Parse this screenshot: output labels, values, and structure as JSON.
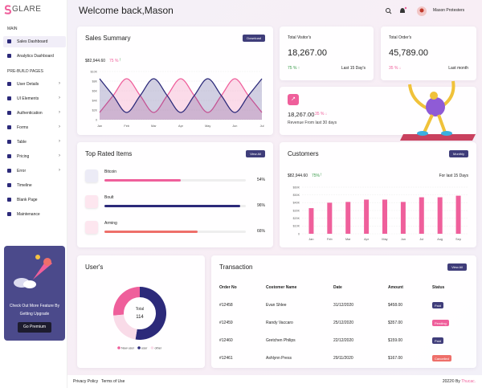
{
  "brand": "GLARE",
  "header": {
    "greeting": "Welcome back,Mason",
    "user": "Mason Protesters"
  },
  "sidebar": {
    "sections": [
      {
        "title": "MAIN",
        "items": [
          "Sales Dashboard",
          "Analytics Dashboard"
        ]
      },
      {
        "title": "PRE-BUILD PAGES",
        "items": [
          "User Details",
          "UI Elements",
          "Authentication",
          "Forms",
          "Table",
          "Pricing",
          "Error",
          "Timeline",
          "Blank Page",
          "Maintenance"
        ]
      }
    ],
    "promo": {
      "text": "Check Out More Feature By Getting Upgrade",
      "button": "Go Premium"
    }
  },
  "sales_summary": {
    "title": "Sales Summary",
    "button": "Download",
    "amount": "$82,944.60",
    "change": "75 %",
    "chart": {
      "type": "line",
      "categories": [
        "Jan",
        null,
        "Feb",
        null,
        "Mar",
        null,
        "Apr",
        null,
        "May",
        null,
        "Jun",
        null,
        "Jul"
      ],
      "series": [
        {
          "color": "#ef5f9b",
          "values": [
            1.5,
            5,
            8.5,
            5,
            1.5,
            5,
            8.5,
            5,
            1.5,
            5,
            8.5,
            5,
            1.5
          ]
        },
        {
          "color": "#2c2a7a",
          "values": [
            8.5,
            5,
            1.5,
            5,
            8.5,
            5,
            1.5,
            5,
            8.5,
            5,
            1.5,
            5,
            8.5
          ]
        }
      ],
      "ylim": [
        0,
        10
      ],
      "yticks": [
        0,
        {
          "value": 2,
          "label": "$2K"
        },
        {
          "value": 4,
          "label": "$4K"
        },
        {
          "value": 6,
          "label": "$6K"
        },
        {
          "value": 8,
          "label": "$8K"
        },
        {
          "value": 10,
          "label": "$10K"
        }
      ]
    }
  },
  "visitors": {
    "title": "Total Visitor's",
    "value": "18,267.00",
    "change": "75 %",
    "period": "Last 15 Day's"
  },
  "orders": {
    "title": "Total Order's",
    "value": "45,789.00",
    "change": "35 %",
    "period": "Last month"
  },
  "revenue": {
    "value": "18,267.00",
    "change": "35 %",
    "description": "Revenue From last 30 days"
  },
  "top_rated": {
    "title": "Top Rated Items",
    "button": "View All",
    "items": [
      {
        "name": "Bitcoin",
        "value": 54,
        "label": "54%",
        "color": "#ef5f9b"
      },
      {
        "name": "Boult",
        "value": 96,
        "label": "96%",
        "color": "#2c2a7a"
      },
      {
        "name": "Arming",
        "value": 66,
        "label": "66%",
        "color": "#ee6f6a"
      }
    ]
  },
  "customers": {
    "title": "Customers",
    "button": "Monthly",
    "amount": "$82,944.60",
    "change": "75%",
    "period": "For last 15 Days",
    "chart": {
      "type": "bar",
      "categories": [
        "Jan",
        "Feb",
        "Mar",
        "Apr",
        "May",
        "Jun",
        "Jul",
        "Aug",
        "Sep"
      ],
      "color": "#ef5f9b",
      "values": [
        33,
        40,
        41,
        44,
        44,
        41,
        47,
        47,
        49
      ],
      "ylim": [
        0,
        60
      ],
      "yticks": [
        0,
        {
          "value": 10,
          "label": "$10K"
        },
        {
          "value": 20,
          "label": "$20K"
        },
        {
          "value": 30,
          "label": "$30K"
        },
        {
          "value": 40,
          "label": "$40K"
        },
        {
          "value": 50,
          "label": "$50K"
        },
        {
          "value": 60,
          "label": "$60K"
        }
      ]
    }
  },
  "users": {
    "title": "User's",
    "total_label": "Total",
    "total": "114",
    "chart": {
      "type": "donut",
      "categories": [
        "New user",
        "user",
        "other"
      ],
      "values": [
        30,
        60,
        24
      ],
      "colors": [
        "#ef5f9b",
        "#2c2a7a",
        "#f9dbe8"
      ]
    }
  },
  "transactions": {
    "title": "Transaction",
    "button": "View All",
    "columns": [
      "Order No",
      "Costomer Name",
      "Date",
      "Amount",
      "Status"
    ],
    "rows": [
      [
        "#12458",
        "Evan Shlee",
        "31/12/2020",
        "$458.00",
        "Paid"
      ],
      [
        "#12459",
        "Randy Vaccaro",
        "25/12/2020",
        "$357.00",
        "Pending"
      ],
      [
        "#12460",
        "Gretchen Philips",
        "22/12/2020",
        "$159.00",
        "Paid"
      ],
      [
        "#12461",
        "Ashlynn Press",
        "29/11/2020",
        "$167.00",
        "Cancelled"
      ]
    ]
  },
  "footer": {
    "links": [
      "Privacy Policy",
      "Terms of Use"
    ],
    "copyright": "2022© By",
    "author": "Thucac."
  }
}
